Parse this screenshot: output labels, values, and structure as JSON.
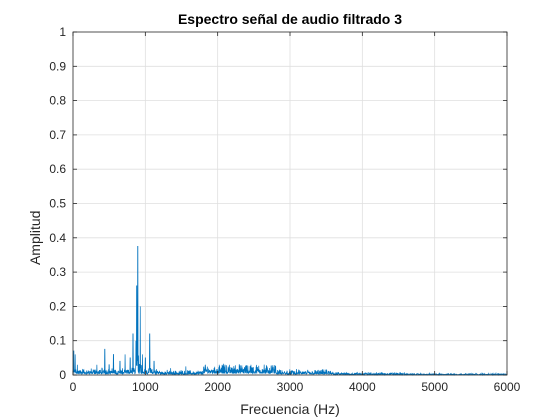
{
  "chart_data": {
    "type": "line",
    "title": "Espectro señal de audio filtrado 3",
    "xlabel": "Frecuencia (Hz)",
    "ylabel": "Amplitud",
    "xlim": [
      0,
      6000
    ],
    "ylim": [
      0,
      1
    ],
    "x_ticks": [
      0,
      1000,
      2000,
      3000,
      4000,
      5000,
      6000
    ],
    "x_tick_labels": [
      "0",
      "1000",
      "2000",
      "3000",
      "4000",
      "5000",
      "6000"
    ],
    "y_ticks": [
      0,
      0.1,
      0.2,
      0.3,
      0.4,
      0.5,
      0.6,
      0.7,
      0.8,
      0.9,
      1
    ],
    "y_tick_labels": [
      "0",
      "0.1",
      "0.2",
      "0.3",
      "0.4",
      "0.5",
      "0.6",
      "0.7",
      "0.8",
      "0.9",
      "1"
    ],
    "grid": true,
    "series_color": "#0072bd",
    "peaks": [
      {
        "x": 10,
        "y": 0.07
      },
      {
        "x": 30,
        "y": 0.06
      },
      {
        "x": 60,
        "y": 0.03
      },
      {
        "x": 150,
        "y": 0.015
      },
      {
        "x": 330,
        "y": 0.03
      },
      {
        "x": 400,
        "y": 0.02
      },
      {
        "x": 440,
        "y": 0.075
      },
      {
        "x": 500,
        "y": 0.03
      },
      {
        "x": 560,
        "y": 0.06
      },
      {
        "x": 650,
        "y": 0.04
      },
      {
        "x": 720,
        "y": 0.06
      },
      {
        "x": 790,
        "y": 0.05
      },
      {
        "x": 830,
        "y": 0.12
      },
      {
        "x": 870,
        "y": 0.1
      },
      {
        "x": 880,
        "y": 0.26
      },
      {
        "x": 895,
        "y": 0.375
      },
      {
        "x": 930,
        "y": 0.2
      },
      {
        "x": 960,
        "y": 0.06
      },
      {
        "x": 1000,
        "y": 0.05
      },
      {
        "x": 1060,
        "y": 0.12
      },
      {
        "x": 1120,
        "y": 0.04
      },
      {
        "x": 1350,
        "y": 0.02
      },
      {
        "x": 1560,
        "y": 0.025
      },
      {
        "x": 1950,
        "y": 0.02
      },
      {
        "x": 2100,
        "y": 0.03
      },
      {
        "x": 2300,
        "y": 0.03
      },
      {
        "x": 2450,
        "y": 0.025
      },
      {
        "x": 2800,
        "y": 0.025
      }
    ],
    "noise_bands": [
      {
        "x0": 0,
        "x1": 1200,
        "floor": 0.012
      },
      {
        "x0": 1200,
        "x1": 1800,
        "floor": 0.009
      },
      {
        "x0": 1800,
        "x1": 2800,
        "floor": 0.02
      },
      {
        "x0": 2800,
        "x1": 3600,
        "floor": 0.01
      },
      {
        "x0": 3600,
        "x1": 4600,
        "floor": 0.005
      },
      {
        "x0": 4600,
        "x1": 6000,
        "floor": 0.003
      }
    ]
  }
}
